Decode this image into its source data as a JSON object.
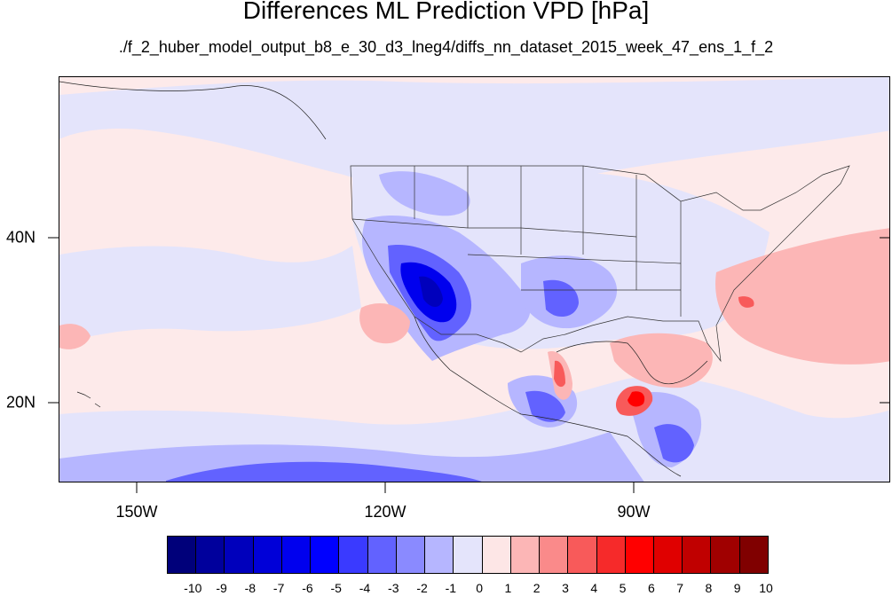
{
  "title": "Differences ML Prediction VPD [hPa]",
  "subtitle": "./f_2_huber_model_output_b8_e_30_d3_lneg4/diffs_nn_dataset_2015_week_47_ens_1_f_2",
  "map": {
    "projection": "cylindrical equidistant",
    "lon_range": [
      -159.6,
      -60.0
    ],
    "lat_range": [
      10.0,
      59.0
    ],
    "lon_ticks": [
      "150W",
      "120W",
      "90W"
    ],
    "lat_ticks": [
      "40N",
      "20N"
    ]
  },
  "colorbar": {
    "labels": [
      "-10",
      "-9",
      "-8",
      "-7",
      "-6",
      "-5",
      "-4",
      "-3",
      "-2",
      "-1",
      "0",
      "1",
      "2",
      "3",
      "4",
      "5",
      "6",
      "7",
      "8",
      "9",
      "10"
    ],
    "colors": [
      "#00007a",
      "#00009c",
      "#0000bc",
      "#0000d8",
      "#0000ee",
      "#0000ff",
      "#3a3aff",
      "#6262ff",
      "#8a8aff",
      "#b6b6ff",
      "#e4e4fb",
      "#fde6e6",
      "#fcb6b6",
      "#fa8a8a",
      "#f85a5a",
      "#f62a2a",
      "#ff0000",
      "#e00000",
      "#c00000",
      "#a00000",
      "#800000"
    ]
  },
  "colors": {
    "background_field": "#fdeaea",
    "light_blue": "#e4e4fb",
    "mid_blue": "#b6b6ff",
    "blue": "#6262ff",
    "strong_blue": "#0000ee",
    "light_red": "#fcb6b6",
    "red": "#f85a5a",
    "strong_red": "#ff0000"
  }
}
